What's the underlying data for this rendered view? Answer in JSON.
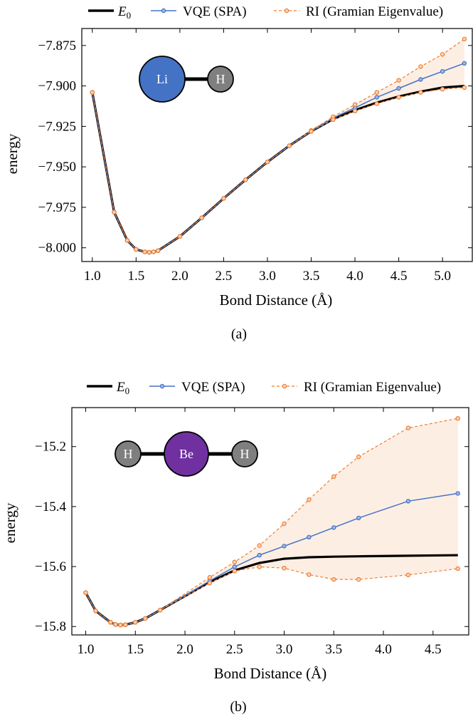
{
  "colors": {
    "exact": "#000000",
    "vqe": "#4472c4",
    "ri": "#ed7d31",
    "band": "#fdeee4",
    "li": "#4472c4",
    "be": "#7030a0",
    "h": "#7f7f7f"
  },
  "chart_data": [
    {
      "type": "line",
      "caption": "(a)",
      "xlabel": "Bond Distance (Å)",
      "ylabel": "energy",
      "xlim": [
        0.88,
        5.34
      ],
      "ylim": [
        -8.0085,
        -7.8645
      ],
      "xticks": [
        "1.0",
        "1.5",
        "2.0",
        "2.5",
        "3.0",
        "3.5",
        "4.0",
        "4.5",
        "5.0"
      ],
      "xtick_values": [
        1.0,
        1.5,
        2.0,
        2.5,
        3.0,
        3.5,
        4.0,
        4.5,
        5.0
      ],
      "yticks": [
        "−7.875",
        "−7.900",
        "−7.925",
        "−7.950",
        "−7.975",
        "−8.000"
      ],
      "ytick_values": [
        -7.875,
        -7.9,
        -7.925,
        -7.95,
        -7.975,
        -8.0
      ],
      "molecule": {
        "atoms": [
          "Li",
          "H"
        ]
      },
      "legend": {
        "placement": "top",
        "entries": [
          "E0",
          "VQE (SPA)",
          "RI (Gramian Eigenvalue)"
        ]
      },
      "x": [
        1.0,
        1.25,
        1.4,
        1.5,
        1.6,
        1.65,
        1.7,
        1.75,
        2.0,
        2.25,
        2.5,
        2.75,
        3.0,
        3.25,
        3.5,
        3.75,
        4.0,
        4.25,
        4.5,
        4.75,
        5.0,
        5.25
      ],
      "series": [
        {
          "name": "E0",
          "style": "exact",
          "values": [
            -7.904,
            -7.978,
            -7.9955,
            -8.001,
            -8.0025,
            -8.0028,
            -8.0025,
            -8.0018,
            -7.993,
            -7.9815,
            -7.9695,
            -7.958,
            -7.947,
            -7.937,
            -7.928,
            -7.9205,
            -7.915,
            -7.9103,
            -7.9065,
            -7.9035,
            -7.901,
            -7.9
          ]
        },
        {
          "name": "VQE (SPA)",
          "style": "vqe",
          "values": [
            -7.904,
            -7.978,
            -7.9955,
            -8.001,
            -8.0025,
            -8.0028,
            -8.0025,
            -8.0018,
            -7.993,
            -7.9815,
            -7.9695,
            -7.958,
            -7.947,
            -7.937,
            -7.928,
            -7.9198,
            -7.9135,
            -7.907,
            -7.9015,
            -7.896,
            -7.891,
            -7.886
          ]
        },
        {
          "name": "RI (Gramian Eigenvalue)",
          "style": "ri_upper",
          "values": [
            -7.904,
            -7.978,
            -7.9955,
            -8.001,
            -8.0025,
            -8.0028,
            -8.0025,
            -8.0018,
            -7.993,
            -7.9815,
            -7.9695,
            -7.958,
            -7.947,
            -7.937,
            -7.9275,
            -7.919,
            -7.9115,
            -7.904,
            -7.8965,
            -7.888,
            -7.8805,
            -7.871
          ]
        },
        {
          "name": "RI (Gramian Eigenvalue) lower",
          "style": "ri_lower",
          "values": [
            -7.904,
            -7.978,
            -7.9955,
            -8.001,
            -8.0025,
            -8.0028,
            -8.0025,
            -8.0018,
            -7.993,
            -7.9815,
            -7.9695,
            -7.958,
            -7.947,
            -7.937,
            -7.928,
            -7.9208,
            -7.9155,
            -7.911,
            -7.907,
            -7.904,
            -7.902,
            -7.901
          ]
        }
      ]
    },
    {
      "type": "line",
      "caption": "(b)",
      "xlabel": "Bond Distance (Å)",
      "ylabel": "energy",
      "xlim": [
        0.86,
        4.86
      ],
      "ylim": [
        -15.828,
        -15.07
      ],
      "xticks": [
        "1.0",
        "1.5",
        "2.0",
        "2.5",
        "3.0",
        "3.5",
        "4.0",
        "4.5"
      ],
      "xtick_values": [
        1.0,
        1.5,
        2.0,
        2.5,
        3.0,
        3.5,
        4.0,
        4.5
      ],
      "yticks": [
        "−15.2",
        "−15.4",
        "−15.6",
        "−15.8"
      ],
      "ytick_values": [
        -15.2,
        -15.4,
        -15.6,
        -15.8
      ],
      "molecule": {
        "atoms": [
          "H",
          "Be",
          "H"
        ]
      },
      "legend": {
        "placement": "top",
        "entries": [
          "E0",
          "VQE (SPA)",
          "RI (Gramian Eigenvalue)"
        ]
      },
      "x": [
        1.0,
        1.1,
        1.25,
        1.3,
        1.35,
        1.4,
        1.5,
        1.6,
        1.75,
        2.25,
        2.5,
        2.75,
        3.0,
        3.25,
        3.5,
        3.75,
        4.25,
        4.75
      ],
      "series": [
        {
          "name": "E0",
          "style": "exact",
          "values": [
            -15.687,
            -15.748,
            -15.786,
            -15.793,
            -15.795,
            -15.794,
            -15.786,
            -15.773,
            -15.745,
            -15.652,
            -15.613,
            -15.588,
            -15.574,
            -15.569,
            -15.567,
            -15.566,
            -15.564,
            -15.562
          ]
        },
        {
          "name": "VQE (SPA)",
          "style": "vqe",
          "values": [
            -15.687,
            -15.748,
            -15.786,
            -15.793,
            -15.795,
            -15.794,
            -15.786,
            -15.773,
            -15.745,
            -15.648,
            -15.601,
            -15.562,
            -15.532,
            -15.502,
            -15.47,
            -15.438,
            -15.382,
            -15.356
          ]
        },
        {
          "name": "RI (Gramian Eigenvalue)",
          "style": "ri_upper",
          "values": [
            -15.687,
            -15.748,
            -15.786,
            -15.793,
            -15.795,
            -15.794,
            -15.786,
            -15.773,
            -15.745,
            -15.636,
            -15.585,
            -15.53,
            -15.457,
            -15.377,
            -15.3,
            -15.234,
            -15.138,
            -15.106
          ]
        },
        {
          "name": "RI (Gramian Eigenvalue) lower",
          "style": "ri_lower",
          "values": [
            -15.687,
            -15.748,
            -15.786,
            -15.793,
            -15.795,
            -15.794,
            -15.786,
            -15.773,
            -15.745,
            -15.655,
            -15.615,
            -15.601,
            -15.605,
            -15.627,
            -15.643,
            -15.643,
            -15.628,
            -15.607
          ]
        }
      ]
    }
  ]
}
